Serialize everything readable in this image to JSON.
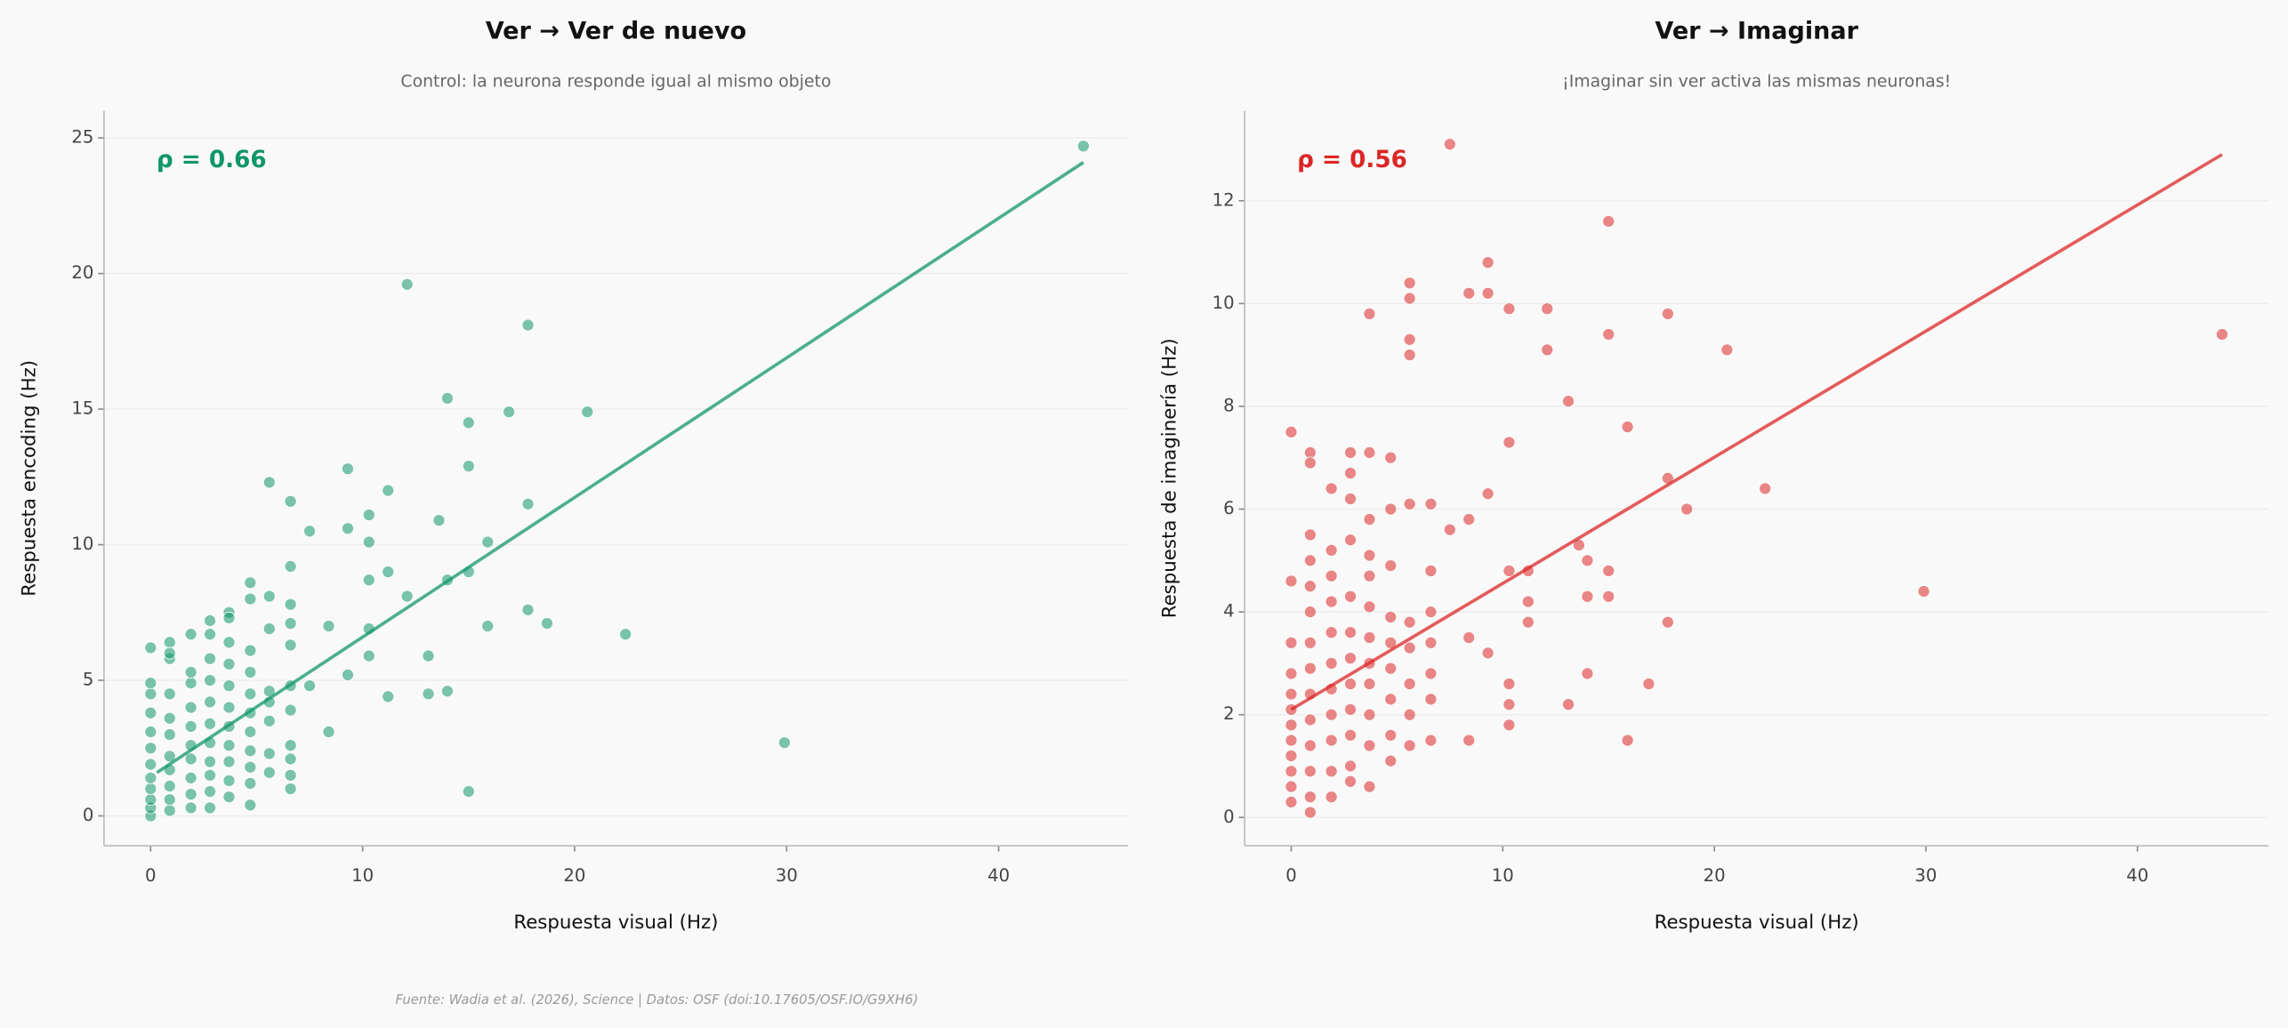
{
  "chart_data": [
    {
      "type": "scatter",
      "title": "Ver → Ver de nuevo",
      "subtitle": "Control: la neurona responde igual al mismo objeto",
      "annotation": "ρ = 0.66",
      "xlabel": "Respuesta visual (Hz)",
      "ylabel": "Respuesta encoding (Hz)",
      "color": "#10966b",
      "xlim": [
        -2.2,
        46.1
      ],
      "ylim": [
        -1.1,
        26.0
      ],
      "xticks": [
        0,
        10,
        20,
        30,
        40
      ],
      "yticks": [
        0,
        5,
        10,
        15,
        20,
        25
      ],
      "grid": "y",
      "x": [
        44,
        12.1,
        17.8,
        14,
        20.6,
        16.9,
        15,
        5.6,
        15,
        9.3,
        6.6,
        11.2,
        17.8,
        10.3,
        13.6,
        9.3,
        7.5,
        15.9,
        10.3,
        6.6,
        11.2,
        15,
        14,
        10.3,
        4.7,
        5.6,
        12.1,
        6.6,
        17.8,
        3.7,
        2.8,
        18.7,
        15.9,
        10.3,
        8.4,
        22.4,
        1.9,
        0,
        0.9,
        13.1,
        10.3,
        9.3,
        7.5,
        14,
        13.1,
        11.2,
        29.9,
        15,
        8.4,
        6.6,
        6.6,
        4.7,
        0,
        0,
        0,
        0,
        0,
        0,
        0,
        0,
        0,
        0,
        0,
        0.9,
        0.9,
        0.9,
        0.9,
        0.9,
        0.9,
        0.9,
        0.9,
        0.9,
        0.9,
        1.9,
        1.9,
        1.9,
        1.9,
        1.9,
        1.9,
        1.9,
        1.9,
        1.9,
        2.8,
        2.8,
        2.8,
        2.8,
        2.8,
        2.8,
        2.8,
        2.8,
        2.8,
        2.8,
        3.7,
        3.7,
        3.7,
        3.7,
        3.7,
        3.7,
        3.7,
        3.7,
        3.7,
        3.7,
        4.7,
        4.7,
        4.7,
        4.7,
        4.7,
        4.7,
        4.7,
        4.7,
        4.7,
        5.6,
        5.6,
        5.6,
        5.6,
        5.6,
        5.6,
        6.6,
        6.6,
        6.6,
        6.6,
        6.6,
        6.6
      ],
      "values": [
        24.7,
        19.6,
        18.1,
        15.4,
        14.9,
        14.9,
        14.5,
        12.3,
        12.9,
        12.8,
        11.6,
        12,
        11.5,
        11.1,
        10.9,
        10.6,
        10.5,
        10.1,
        10.1,
        9.2,
        9,
        9,
        8.7,
        8.7,
        8.6,
        8.1,
        8.1,
        7.8,
        7.6,
        7.5,
        7.2,
        7.1,
        7,
        6.9,
        7,
        6.7,
        6.7,
        6.2,
        6.4,
        5.9,
        5.9,
        5.2,
        4.8,
        4.6,
        4.5,
        4.4,
        2.7,
        0.9,
        3.1,
        1.5,
        1,
        0.4,
        0,
        0.3,
        0.6,
        1,
        1.4,
        1.9,
        2.5,
        3.1,
        3.8,
        4.5,
        4.9,
        0.2,
        0.6,
        1.1,
        1.7,
        2.2,
        3,
        3.6,
        4.5,
        5.8,
        6,
        0.3,
        0.8,
        1.4,
        2.1,
        2.6,
        3.3,
        4,
        4.9,
        5.3,
        0.3,
        0.9,
        1.5,
        2,
        2.7,
        3.4,
        4.2,
        5,
        5.8,
        6.7,
        0.7,
        1.3,
        2,
        2.6,
        3.3,
        4,
        4.8,
        5.6,
        6.4,
        7.3,
        1.2,
        1.8,
        2.4,
        3.1,
        3.8,
        4.5,
        5.3,
        6.1,
        8,
        1.6,
        2.3,
        3.5,
        4.2,
        4.6,
        6.9,
        2.1,
        2.6,
        3.9,
        4.8,
        6.3,
        7.1
      ],
      "fit": {
        "x": [
          0.3,
          44
        ],
        "values": [
          1.6,
          24.1
        ]
      }
    },
    {
      "type": "scatter",
      "title": "Ver → Imaginar",
      "subtitle": "¡Imaginar sin ver activa las mismas neuronas!",
      "annotation": "ρ = 0.56",
      "xlabel": "Respuesta visual (Hz)",
      "ylabel": "Respuesta de imaginería (Hz)",
      "color": "#dc2626",
      "xlim": [
        -2.2,
        46.2
      ],
      "ylim": [
        -0.55,
        13.75
      ],
      "xticks": [
        0,
        10,
        20,
        30,
        40
      ],
      "yticks": [
        0,
        2,
        4,
        6,
        8,
        10,
        12
      ],
      "grid": "y",
      "x": [
        7.5,
        15,
        9.3,
        5.6,
        8.4,
        9.3,
        5.6,
        10.3,
        12.1,
        3.7,
        17.8,
        15,
        44,
        5.6,
        5.6,
        12.1,
        20.6,
        13.1,
        15.9,
        0,
        10.3,
        0.9,
        2.8,
        3.7,
        4.7,
        0.9,
        2.8,
        17.8,
        22.4,
        9.3,
        1.9,
        2.8,
        18.7,
        5.6,
        6.6,
        4.7,
        8.4,
        3.7,
        7.5,
        13.6,
        14,
        29.9,
        11.2,
        15,
        10.3,
        14,
        15,
        11.2,
        17.8,
        11.2,
        9.3,
        8.4,
        14,
        16.9,
        10.3,
        13.1,
        10.3,
        10.3,
        15.9,
        8.4,
        6.6,
        5.6,
        4.7,
        3.7,
        2.8,
        0.9,
        0,
        0,
        0,
        0,
        0,
        0,
        0,
        0,
        0,
        0,
        0,
        0.9,
        0.9,
        0.9,
        0.9,
        0.9,
        0.9,
        0.9,
        0.9,
        0.9,
        0.9,
        0.9,
        1.9,
        1.9,
        1.9,
        1.9,
        1.9,
        1.9,
        1.9,
        1.9,
        1.9,
        1.9,
        2.8,
        2.8,
        2.8,
        2.8,
        2.8,
        2.8,
        2.8,
        2.8,
        3.7,
        3.7,
        3.7,
        3.7,
        3.7,
        3.7,
        3.7,
        3.7,
        4.7,
        4.7,
        4.7,
        4.7,
        4.7,
        4.7,
        5.6,
        5.6,
        5.6,
        5.6,
        6.6,
        6.6,
        6.6,
        6.6,
        6.6
      ],
      "values": [
        13.1,
        11.6,
        10.8,
        10.4,
        10.2,
        10.2,
        10.1,
        9.9,
        9.9,
        9.8,
        9.8,
        9.4,
        9.4,
        9.3,
        9.0,
        9.1,
        9.1,
        8.1,
        7.6,
        7.5,
        7.3,
        7.1,
        7.1,
        7.1,
        7,
        6.9,
        6.7,
        6.6,
        6.4,
        6.3,
        6.4,
        6.2,
        6,
        6.1,
        6.1,
        6,
        5.8,
        5.8,
        5.6,
        5.3,
        5,
        4.4,
        4.8,
        4.8,
        4.8,
        4.3,
        4.3,
        4.2,
        3.8,
        3.8,
        3.2,
        3.5,
        2.8,
        2.6,
        2.6,
        2.2,
        2.2,
        1.8,
        1.5,
        1.5,
        1.5,
        1.4,
        1.1,
        0.6,
        0.7,
        0.1,
        0.3,
        0.6,
        0.9,
        1.2,
        1.5,
        1.8,
        2.1,
        2.4,
        2.8,
        3.4,
        4.6,
        0.4,
        0.9,
        1.4,
        1.9,
        2.4,
        2.9,
        3.4,
        4,
        4.5,
        5,
        5.5,
        0.4,
        0.9,
        1.5,
        2,
        2.5,
        3,
        3.6,
        4.2,
        4.7,
        5.2,
        1,
        1.6,
        2.1,
        2.6,
        3.1,
        3.6,
        4.3,
        5.4,
        1.4,
        2,
        2.6,
        3,
        3.5,
        4.1,
        4.7,
        5.1,
        1.6,
        2.3,
        2.9,
        3.4,
        3.9,
        4.9,
        2,
        2.6,
        3.3,
        3.8,
        2.3,
        2.8,
        3.4,
        4,
        4.8
      ],
      "fit": {
        "x": [
          0,
          44
        ],
        "values": [
          2.1,
          12.9
        ]
      }
    }
  ],
  "footer": "Fuente: Wadia et al. (2026), Science | Datos: OSF (doi:10.17605/OSF.IO/G9XH6)"
}
